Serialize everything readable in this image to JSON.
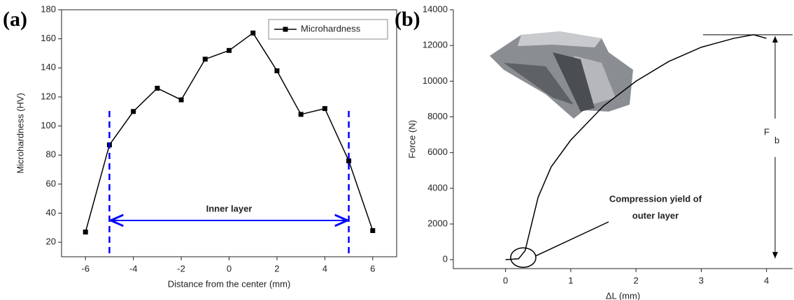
{
  "chart_data": [
    {
      "type": "line",
      "panel_label": "(a)",
      "x_label": "Distance from the center (mm)",
      "y_label": "Microhardness (HV)",
      "x": [
        -6,
        -5,
        -4,
        -3,
        -2,
        -1,
        0,
        1,
        2,
        3,
        4,
        5,
        6
      ],
      "series": [
        {
          "name": "Microhardness",
          "color": "#000000",
          "values": [
            27,
            87,
            110,
            126,
            118,
            146,
            152,
            164,
            138,
            108,
            112,
            76,
            28
          ]
        }
      ],
      "xlim": [
        -7,
        7
      ],
      "ylim": [
        10,
        180
      ],
      "xticks": [
        -6,
        -4,
        -2,
        0,
        2,
        4,
        6
      ],
      "yticks": [
        20,
        40,
        60,
        80,
        100,
        120,
        140,
        160,
        180
      ],
      "vlines": [
        -5,
        5
      ],
      "vline_color": "#0000ff",
      "annotation": "Inner layer",
      "legend": "top-right"
    },
    {
      "type": "line",
      "panel_label": "(b)",
      "x_label": "ΔL (mm)",
      "y_label": "Force (N)",
      "x": [
        0,
        0.2,
        0.3,
        0.4,
        0.5,
        0.7,
        1,
        1.5,
        2,
        2.5,
        3,
        3.5,
        3.8,
        4.0
      ],
      "series": [
        {
          "color": "#000000",
          "values": [
            0,
            50,
            500,
            2000,
            3500,
            5200,
            6700,
            8600,
            10000,
            11100,
            11900,
            12400,
            12600,
            12400
          ]
        }
      ],
      "xlim": [
        -0.8,
        4.4
      ],
      "ylim": [
        -500,
        14000
      ],
      "xticks": [
        0,
        1,
        2,
        3,
        4
      ],
      "yticks": [
        0,
        2000,
        4000,
        6000,
        8000,
        10000,
        12000,
        14000
      ],
      "hline": 12600,
      "force_label": "F",
      "force_subscript": "b",
      "annotation_lines": [
        "Compression yield of",
        "outer layer"
      ]
    }
  ]
}
